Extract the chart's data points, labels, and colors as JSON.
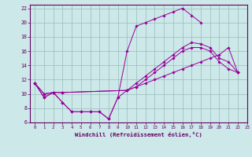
{
  "title": "",
  "xlabel": "Windchill (Refroidissement éolien,°C)",
  "xlim": [
    -0.5,
    23
  ],
  "ylim": [
    6,
    22.5
  ],
  "xticks": [
    0,
    1,
    2,
    3,
    4,
    5,
    6,
    7,
    8,
    9,
    10,
    11,
    12,
    13,
    14,
    15,
    16,
    17,
    18,
    19,
    20,
    21,
    22,
    23
  ],
  "yticks": [
    6,
    8,
    10,
    12,
    14,
    16,
    18,
    20,
    22
  ],
  "background_color": "#cce8e8",
  "line_color": "#990099",
  "grid_color": "#99bbbb",
  "line1_x": [
    0,
    1,
    2,
    3,
    4,
    5,
    6,
    7,
    8,
    9,
    10,
    11,
    12,
    13,
    14,
    15,
    16,
    17,
    18
  ],
  "line1_y": [
    11.5,
    9.5,
    10.2,
    8.8,
    7.5,
    7.5,
    7.5,
    7.5,
    6.5,
    9.5,
    16.0,
    19.5,
    20.0,
    20.5,
    21.0,
    21.5,
    22.0,
    21.0,
    20.0
  ],
  "line2_x": [
    0,
    1,
    2,
    3,
    4,
    5,
    6,
    7,
    8,
    9,
    10,
    11,
    12,
    13,
    14,
    15,
    16,
    17,
    18,
    19,
    20,
    21,
    22
  ],
  "line2_y": [
    11.5,
    9.5,
    10.2,
    8.8,
    7.5,
    7.5,
    7.5,
    7.5,
    6.5,
    9.5,
    10.5,
    11.0,
    11.5,
    12.0,
    12.5,
    13.0,
    13.5,
    14.0,
    14.5,
    15.0,
    15.5,
    16.5,
    13.0
  ],
  "line3_x": [
    0,
    1,
    2,
    3,
    10,
    11,
    12,
    13,
    14,
    15,
    16,
    17,
    18,
    19,
    20,
    21,
    22
  ],
  "line3_y": [
    11.5,
    10.0,
    10.2,
    10.2,
    10.5,
    11.5,
    12.5,
    13.5,
    14.5,
    15.5,
    16.5,
    17.2,
    17.0,
    16.5,
    15.0,
    14.5,
    13.0
  ],
  "line4_x": [
    0,
    1,
    2,
    3,
    10,
    11,
    12,
    13,
    14,
    15,
    16,
    17,
    18,
    19,
    20,
    21,
    22
  ],
  "line4_y": [
    11.5,
    10.0,
    10.2,
    10.2,
    10.5,
    11.0,
    12.0,
    13.0,
    14.0,
    15.0,
    16.0,
    16.5,
    16.5,
    16.0,
    14.5,
    13.5,
    13.0
  ]
}
